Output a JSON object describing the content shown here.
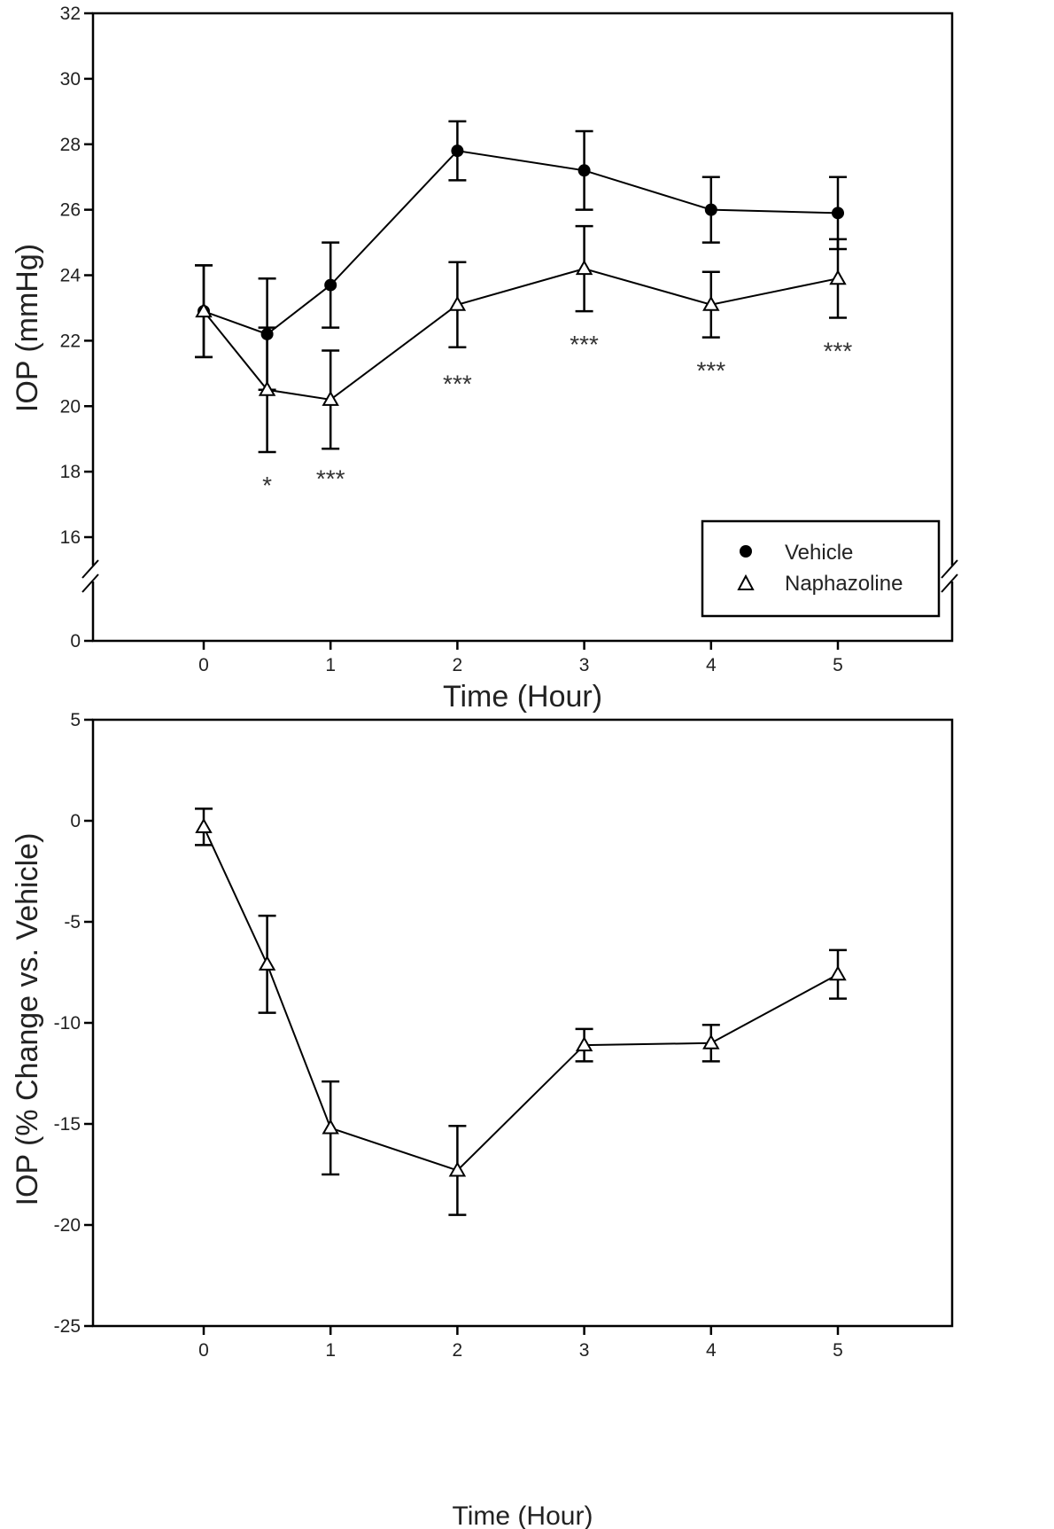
{
  "chart_data": [
    {
      "type": "line",
      "title": "",
      "xlabel": "Time (Hour)",
      "ylabel": "IOP (mmHg)",
      "x_ticks": [
        "0",
        "1",
        "2",
        "3",
        "4",
        "5"
      ],
      "y_ticks": [
        "0",
        "16",
        "18",
        "20",
        "22",
        "24",
        "26",
        "28",
        "30",
        "32"
      ],
      "ylim": [
        0,
        32
      ],
      "y_axis_break": [
        0,
        15
      ],
      "xlim": [
        -0.9,
        5.9
      ],
      "grid": false,
      "legend_position": "bottom-right",
      "series": [
        {
          "name": "Vehicle",
          "marker": "filled-circle",
          "x": [
            0,
            0.5,
            1,
            2,
            3,
            4,
            5
          ],
          "y": [
            22.9,
            22.2,
            23.7,
            27.8,
            27.2,
            26.0,
            25.9
          ],
          "error": [
            1.4,
            1.7,
            1.3,
            0.9,
            1.2,
            1.0,
            1.1
          ]
        },
        {
          "name": "Naphazoline",
          "marker": "open-triangle",
          "x": [
            0,
            0.5,
            1,
            2,
            3,
            4,
            5
          ],
          "y": [
            22.9,
            20.5,
            20.2,
            23.1,
            24.2,
            23.1,
            23.9
          ],
          "error": [
            1.4,
            1.9,
            1.5,
            1.3,
            1.3,
            1.0,
            1.2
          ]
        }
      ],
      "annotations": [
        {
          "x": 0.5,
          "y": 17.6,
          "text": "*"
        },
        {
          "x": 1,
          "y": 17.8,
          "text": "***"
        },
        {
          "x": 2,
          "y": 20.7,
          "text": "***"
        },
        {
          "x": 3,
          "y": 21.9,
          "text": "***"
        },
        {
          "x": 4,
          "y": 21.1,
          "text": "***"
        },
        {
          "x": 5,
          "y": 21.7,
          "text": "***"
        }
      ]
    },
    {
      "type": "line",
      "title": "",
      "xlabel": "Time (Hour)",
      "ylabel": "IOP (% Change vs. Vehicle)",
      "x_ticks": [
        "0",
        "1",
        "2",
        "3",
        "4",
        "5"
      ],
      "y_ticks": [
        "5",
        "0",
        "-5",
        "-10",
        "-15",
        "-20",
        "-25"
      ],
      "ylim": [
        -25,
        5
      ],
      "xlim": [
        -0.9,
        5.9
      ],
      "grid": false,
      "series": [
        {
          "name": "Naphazoline",
          "marker": "open-triangle",
          "x": [
            0,
            0.5,
            1,
            2,
            3,
            4,
            5
          ],
          "y": [
            -0.3,
            -7.1,
            -15.2,
            -17.3,
            -11.1,
            -11.0,
            -7.6
          ],
          "error": [
            0.9,
            2.4,
            2.3,
            2.2,
            0.8,
            0.9,
            1.2
          ]
        }
      ]
    }
  ]
}
